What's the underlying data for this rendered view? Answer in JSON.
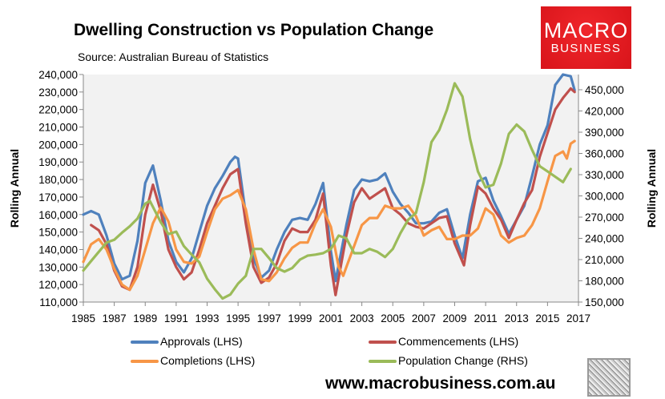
{
  "chart_data": {
    "type": "line",
    "title": "Dwelling Construction vs Population Change",
    "subtitle": "Source: Australian Bureau of Statistics",
    "ylabel": "Rolling Annual",
    "y2label": "Rolling Annual",
    "xlim": [
      1985,
      2017
    ],
    "ylim": [
      110000,
      240000
    ],
    "y2lim": [
      150000,
      471500
    ],
    "xticks": [
      "1985",
      "1987",
      "1989",
      "1991",
      "1993",
      "1995",
      "1997",
      "1999",
      "2001",
      "2003",
      "2005",
      "2007",
      "2009",
      "2011",
      "2013",
      "2015",
      "2017"
    ],
    "yticks": [
      "110,000",
      "120,000",
      "130,000",
      "140,000",
      "150,000",
      "160,000",
      "170,000",
      "180,000",
      "190,000",
      "200,000",
      "210,000",
      "220,000",
      "230,000",
      "240,000"
    ],
    "y2ticks": [
      "150,000",
      "180,000",
      "210,000",
      "240,000",
      "270,000",
      "300,000",
      "330,000",
      "360,000",
      "390,000",
      "420,000",
      "450,000"
    ],
    "grid": false,
    "legend_position": "bottom",
    "series": [
      {
        "name": "Approvals (LHS)",
        "axis": "left",
        "color": "#4f81bd",
        "points": [
          [
            1985,
            160
          ],
          [
            1985.5,
            162
          ],
          [
            1986,
            160
          ],
          [
            1986.5,
            148
          ],
          [
            1987,
            132
          ],
          [
            1987.5,
            123
          ],
          [
            1988,
            125
          ],
          [
            1988.5,
            145
          ],
          [
            1989,
            178
          ],
          [
            1989.5,
            188
          ],
          [
            1990,
            168
          ],
          [
            1990.5,
            145
          ],
          [
            1991,
            133
          ],
          [
            1991.5,
            127
          ],
          [
            1992,
            135
          ],
          [
            1992.5,
            150
          ],
          [
            1993,
            165
          ],
          [
            1993.5,
            175
          ],
          [
            1994,
            182
          ],
          [
            1994.5,
            190
          ],
          [
            1994.8,
            193
          ],
          [
            1995,
            192
          ],
          [
            1995.5,
            160
          ],
          [
            1996,
            135
          ],
          [
            1996.5,
            124
          ],
          [
            1997,
            128
          ],
          [
            1997.5,
            140
          ],
          [
            1998,
            150
          ],
          [
            1998.5,
            157
          ],
          [
            1999,
            158
          ],
          [
            1999.5,
            157
          ],
          [
            2000,
            166
          ],
          [
            2000.5,
            178
          ],
          [
            2001,
            139
          ],
          [
            2001.3,
            122
          ],
          [
            2002,
            154
          ],
          [
            2002.5,
            174
          ],
          [
            2003,
            180
          ],
          [
            2003.5,
            179
          ],
          [
            2004,
            180
          ],
          [
            2004.5,
            183.5
          ],
          [
            2005,
            173
          ],
          [
            2005.5,
            166
          ],
          [
            2006,
            161
          ],
          [
            2006.5,
            155
          ],
          [
            2007,
            155
          ],
          [
            2007.5,
            156
          ],
          [
            2008,
            161
          ],
          [
            2008.5,
            163
          ],
          [
            2009,
            148
          ],
          [
            2009.5,
            135
          ],
          [
            2010,
            160
          ],
          [
            2010.5,
            179
          ],
          [
            2011,
            181
          ],
          [
            2011.5,
            168
          ],
          [
            2012,
            159
          ],
          [
            2012.5,
            149
          ],
          [
            2013,
            157
          ],
          [
            2013.5,
            165
          ],
          [
            2014,
            182
          ],
          [
            2014.5,
            200
          ],
          [
            2015,
            211
          ],
          [
            2015.5,
            234
          ],
          [
            2016,
            240
          ],
          [
            2016.5,
            239
          ],
          [
            2016.75,
            231
          ]
        ]
      },
      {
        "name": "Commencements (LHS)",
        "axis": "left",
        "color": "#c0504d",
        "points": [
          [
            1985.5,
            154
          ],
          [
            1986,
            151
          ],
          [
            1986.5,
            143
          ],
          [
            1987,
            128
          ],
          [
            1987.5,
            119
          ],
          [
            1988,
            117
          ],
          [
            1988.5,
            130
          ],
          [
            1989,
            160
          ],
          [
            1989.5,
            177
          ],
          [
            1990,
            162
          ],
          [
            1990.5,
            140
          ],
          [
            1991,
            130
          ],
          [
            1991.5,
            123
          ],
          [
            1992,
            127
          ],
          [
            1992.5,
            140
          ],
          [
            1993,
            155
          ],
          [
            1993.5,
            165
          ],
          [
            1994,
            175
          ],
          [
            1994.5,
            183
          ],
          [
            1995,
            186
          ],
          [
            1995.5,
            155
          ],
          [
            1996,
            130
          ],
          [
            1996.5,
            121
          ],
          [
            1997,
            124
          ],
          [
            1997.5,
            132
          ],
          [
            1998,
            145
          ],
          [
            1998.5,
            152
          ],
          [
            1999,
            150
          ],
          [
            1999.5,
            150
          ],
          [
            2000,
            157
          ],
          [
            2000.5,
            172
          ],
          [
            2001,
            131
          ],
          [
            2001.3,
            114
          ],
          [
            2002,
            148
          ],
          [
            2002.5,
            167
          ],
          [
            2003,
            175
          ],
          [
            2003.5,
            169
          ],
          [
            2004,
            172
          ],
          [
            2004.5,
            175
          ],
          [
            2005,
            163.5
          ],
          [
            2005.5,
            160
          ],
          [
            2006,
            155
          ],
          [
            2006.5,
            153
          ],
          [
            2007,
            152
          ],
          [
            2007.5,
            155
          ],
          [
            2008,
            158
          ],
          [
            2008.5,
            159
          ],
          [
            2009,
            143.5
          ],
          [
            2009.6,
            131
          ],
          [
            2010,
            154
          ],
          [
            2010.5,
            176
          ],
          [
            2011,
            172
          ],
          [
            2011.5,
            163.5
          ],
          [
            2012,
            157
          ],
          [
            2012.5,
            146.6
          ],
          [
            2013,
            157
          ],
          [
            2013.5,
            166.6
          ],
          [
            2014,
            174
          ],
          [
            2014.5,
            193
          ],
          [
            2015,
            206.6
          ],
          [
            2015.5,
            220
          ],
          [
            2016,
            226.6
          ],
          [
            2016.5,
            232
          ],
          [
            2016.75,
            230
          ]
        ]
      },
      {
        "name": "Completions (LHS)",
        "axis": "left",
        "color": "#f79646",
        "points": [
          [
            1985,
            133
          ],
          [
            1985.5,
            143
          ],
          [
            1986,
            146
          ],
          [
            1986.5,
            140
          ],
          [
            1987,
            129
          ],
          [
            1987.5,
            120
          ],
          [
            1988,
            117
          ],
          [
            1988.5,
            125
          ],
          [
            1989,
            140
          ],
          [
            1989.5,
            155
          ],
          [
            1990,
            164
          ],
          [
            1990.5,
            156
          ],
          [
            1991,
            140
          ],
          [
            1991.5,
            133
          ],
          [
            1992,
            132
          ],
          [
            1992.5,
            136
          ],
          [
            1993,
            150
          ],
          [
            1993.5,
            163
          ],
          [
            1994,
            169
          ],
          [
            1994.5,
            171
          ],
          [
            1995,
            174
          ],
          [
            1995.5,
            163
          ],
          [
            1996,
            140
          ],
          [
            1996.5,
            123
          ],
          [
            1997,
            122
          ],
          [
            1997.5,
            127
          ],
          [
            1998,
            135
          ],
          [
            1998.5,
            141
          ],
          [
            1999,
            144
          ],
          [
            1999.5,
            144
          ],
          [
            2000,
            155
          ],
          [
            2000.5,
            163
          ],
          [
            2001,
            153
          ],
          [
            2001.5,
            130
          ],
          [
            2001.8,
            125
          ],
          [
            2002,
            130
          ],
          [
            2002.5,
            142
          ],
          [
            2003,
            154
          ],
          [
            2003.5,
            158
          ],
          [
            2004,
            158
          ],
          [
            2004.5,
            165
          ],
          [
            2005,
            163.5
          ],
          [
            2005.5,
            163.5
          ],
          [
            2006,
            165
          ],
          [
            2006.5,
            159
          ],
          [
            2007,
            148
          ],
          [
            2007.5,
            151
          ],
          [
            2008,
            153
          ],
          [
            2008.5,
            146
          ],
          [
            2009,
            146
          ],
          [
            2009.5,
            148
          ],
          [
            2010,
            148
          ],
          [
            2010.5,
            152
          ],
          [
            2011,
            163.5
          ],
          [
            2011.5,
            160
          ],
          [
            2012,
            148
          ],
          [
            2012.5,
            144
          ],
          [
            2013,
            146.6
          ],
          [
            2013.5,
            148
          ],
          [
            2014,
            154
          ],
          [
            2014.5,
            163.5
          ],
          [
            2015,
            179
          ],
          [
            2015.5,
            193.5
          ],
          [
            2016,
            196
          ],
          [
            2016.25,
            192
          ],
          [
            2016.5,
            200.5
          ],
          [
            2016.75,
            202
          ]
        ]
      },
      {
        "name": "Population Change (RHS)",
        "axis": "right",
        "color": "#9bbb59",
        "points": [
          [
            1985,
            194.6
          ],
          [
            1985.5,
            208
          ],
          [
            1986,
            221
          ],
          [
            1986.5,
            234
          ],
          [
            1987,
            238
          ],
          [
            1987.5,
            248
          ],
          [
            1988,
            257
          ],
          [
            1988.5,
            268
          ],
          [
            1989,
            289
          ],
          [
            1989.3,
            293
          ],
          [
            1990,
            263
          ],
          [
            1990.5,
            246
          ],
          [
            1991,
            249.5
          ],
          [
            1991.5,
            229
          ],
          [
            1992,
            217
          ],
          [
            1992.5,
            206
          ],
          [
            1993,
            183
          ],
          [
            1993.5,
            168
          ],
          [
            1994,
            155
          ],
          [
            1994.5,
            160.6
          ],
          [
            1995,
            176
          ],
          [
            1995.5,
            187
          ],
          [
            1996,
            225
          ],
          [
            1996.5,
            225
          ],
          [
            1997,
            212
          ],
          [
            1997.5,
            198
          ],
          [
            1998,
            193
          ],
          [
            1998.5,
            198
          ],
          [
            1999,
            210
          ],
          [
            1999.5,
            215.5
          ],
          [
            2000,
            217
          ],
          [
            2000.5,
            219
          ],
          [
            2001,
            225
          ],
          [
            2001.5,
            244
          ],
          [
            2002,
            240
          ],
          [
            2002.5,
            219
          ],
          [
            2003,
            219
          ],
          [
            2003.5,
            225
          ],
          [
            2004,
            221
          ],
          [
            2004.5,
            213.6
          ],
          [
            2005,
            225
          ],
          [
            2005.5,
            247.6
          ],
          [
            2006,
            266.5
          ],
          [
            2006.5,
            276
          ],
          [
            2007,
            319.5
          ],
          [
            2007.5,
            376
          ],
          [
            2008,
            393
          ],
          [
            2008.5,
            421.6
          ],
          [
            2009,
            459
          ],
          [
            2009.5,
            440.5
          ],
          [
            2010,
            380
          ],
          [
            2010.5,
            334.6
          ],
          [
            2011,
            312
          ],
          [
            2011.5,
            315.7
          ],
          [
            2012,
            346
          ],
          [
            2012.5,
            387.6
          ],
          [
            2013,
            400.8
          ],
          [
            2013.5,
            391
          ],
          [
            2014,
            365
          ],
          [
            2014.5,
            342
          ],
          [
            2015,
            334.6
          ],
          [
            2015.5,
            327
          ],
          [
            2016,
            319.5
          ],
          [
            2016.5,
            338
          ]
        ]
      }
    ],
    "value_unit_multiplier": 1000
  },
  "logo": {
    "line1": "MACRO",
    "line2": "BUSINESS"
  },
  "footer": {
    "url": "www.macrobusiness.com.au"
  }
}
